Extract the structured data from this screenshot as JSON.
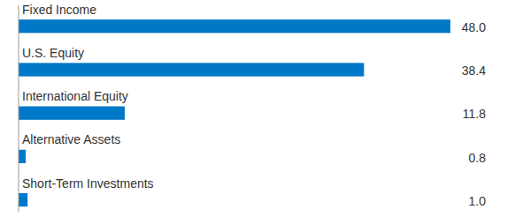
{
  "chart_data": {
    "type": "bar",
    "orientation": "horizontal",
    "categories": [
      "Fixed Income",
      "U.S. Equity",
      "International Equity",
      "Alternative Assets",
      "Short-Term Investments"
    ],
    "values": [
      48.0,
      38.4,
      11.8,
      0.8,
      1.0
    ],
    "value_labels": [
      "48.0",
      "38.4",
      "11.8",
      "0.8",
      "1.0"
    ],
    "color": "#0078c8",
    "xlim": [
      0,
      48
    ],
    "data_labels": true,
    "tick_labels": false,
    "grid": false
  }
}
